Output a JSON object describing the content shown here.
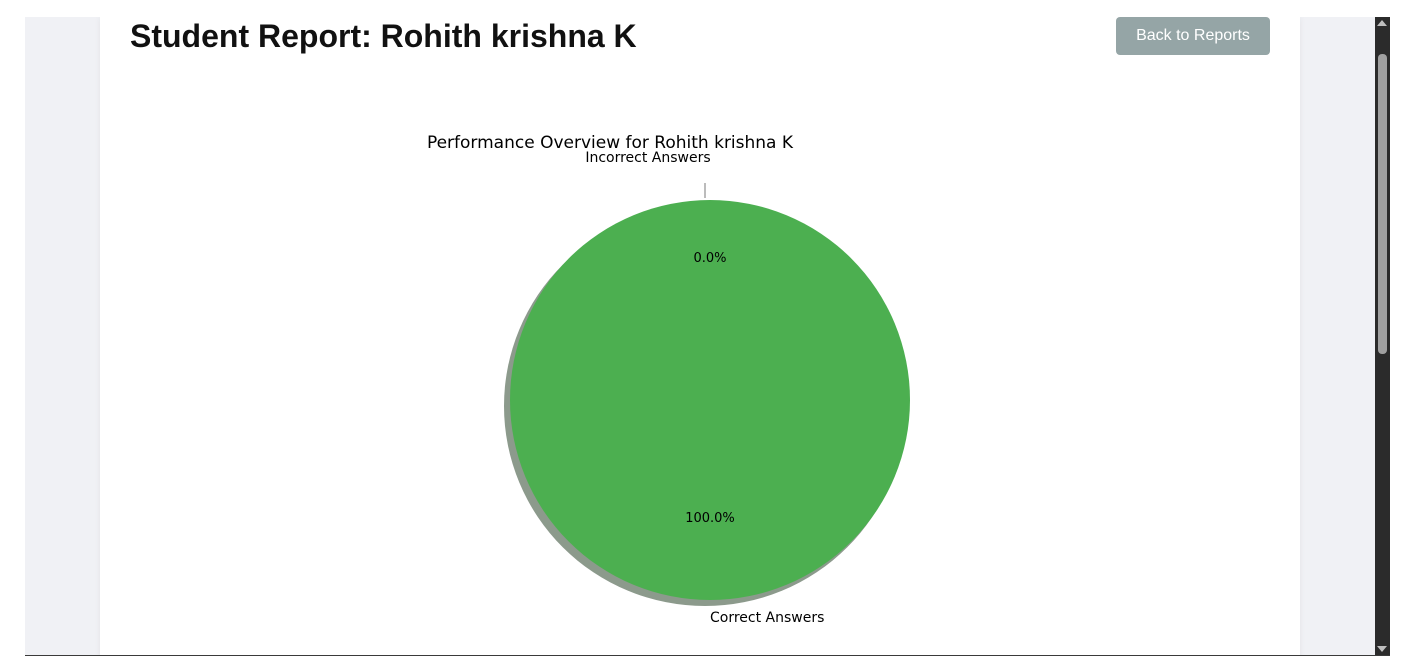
{
  "header": {
    "title": "Student Report: Rohith krishna K",
    "back_button_label": "Back to Reports"
  },
  "colors": {
    "correct": "#4caf50",
    "incorrect": "#f44336",
    "button": "#95a5a6",
    "page_background": "#f0f1f5"
  },
  "chart_data": {
    "type": "pie",
    "title": "Performance Overview for Rohith krishna K",
    "shadow": true,
    "start_angle": 90,
    "slices": [
      {
        "label": "Correct Answers",
        "value": 100,
        "pct_label": "100.0%",
        "color": "#4caf50"
      },
      {
        "label": "Incorrect Answers",
        "value": 0,
        "pct_label": "0.0%",
        "color": "#f44336"
      }
    ]
  }
}
